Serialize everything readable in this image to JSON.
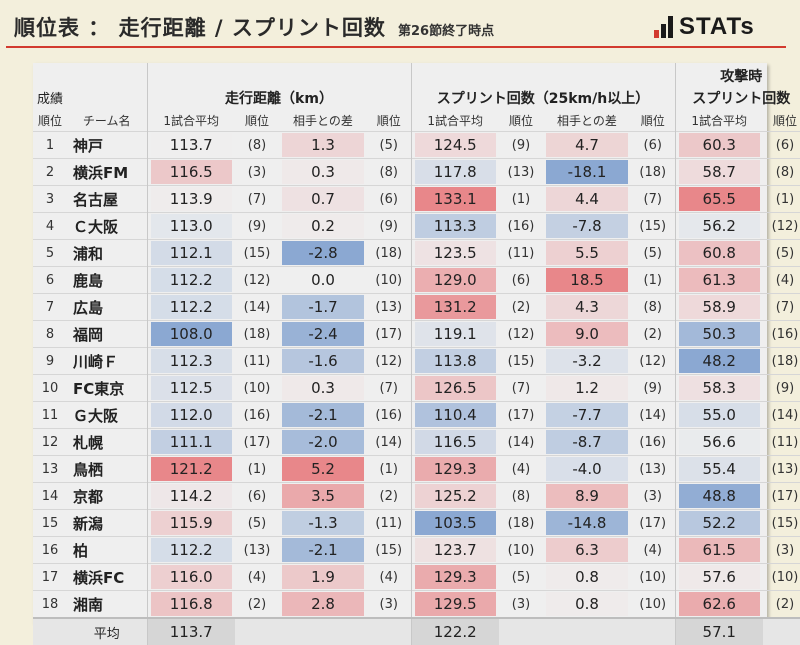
{
  "header": {
    "title": "順位表 ： 走行距離 / スプリント回数",
    "subtitle": "第26節終了時点",
    "logo_text": "STATs",
    "rule_color": "#d23a2f"
  },
  "table": {
    "corner_line1": "成績",
    "corner_rank": "順位",
    "corner_team": "チーム名",
    "group_distance": "走行距離（km）",
    "group_sprint": "スプリント回数（25km/h以上）",
    "group_attack_line1": "攻撃時",
    "group_attack_line2": "スプリント回数",
    "sub": {
      "per_game": "1試合平均",
      "rank": "順位",
      "diff": "相手との差"
    },
    "colors": {
      "blue_strong": "#8ba8d2",
      "red_strong": "#e8878a",
      "neutral": "#efefef"
    },
    "rows": [
      {
        "rank": "1",
        "team": "神戸",
        "dist": "113.7",
        "dist_r": "(8)",
        "dist_d": "1.3",
        "dist_dr": "(5)",
        "spr": "124.5",
        "spr_r": "(9)",
        "spr_d": "4.7",
        "spr_dr": "(6)",
        "att": "60.3",
        "att_r": "(6)"
      },
      {
        "rank": "2",
        "team": "横浜FM",
        "dist": "116.5",
        "dist_r": "(3)",
        "dist_d": "0.3",
        "dist_dr": "(8)",
        "spr": "117.8",
        "spr_r": "(13)",
        "spr_d": "-18.1",
        "spr_dr": "(18)",
        "att": "58.7",
        "att_r": "(8)"
      },
      {
        "rank": "3",
        "team": "名古屋",
        "dist": "113.9",
        "dist_r": "(7)",
        "dist_d": "0.7",
        "dist_dr": "(6)",
        "spr": "133.1",
        "spr_r": "(1)",
        "spr_d": "4.4",
        "spr_dr": "(7)",
        "att": "65.5",
        "att_r": "(1)"
      },
      {
        "rank": "4",
        "team": "Ｃ大阪",
        "dist": "113.0",
        "dist_r": "(9)",
        "dist_d": "0.2",
        "dist_dr": "(9)",
        "spr": "113.3",
        "spr_r": "(16)",
        "spr_d": "-7.8",
        "spr_dr": "(15)",
        "att": "56.2",
        "att_r": "(12)"
      },
      {
        "rank": "5",
        "team": "浦和",
        "dist": "112.1",
        "dist_r": "(15)",
        "dist_d": "-2.8",
        "dist_dr": "(18)",
        "spr": "123.5",
        "spr_r": "(11)",
        "spr_d": "5.5",
        "spr_dr": "(5)",
        "att": "60.8",
        "att_r": "(5)"
      },
      {
        "rank": "6",
        "team": "鹿島",
        "dist": "112.2",
        "dist_r": "(12)",
        "dist_d": "0.0",
        "dist_dr": "(10)",
        "spr": "129.0",
        "spr_r": "(6)",
        "spr_d": "18.5",
        "spr_dr": "(1)",
        "att": "61.3",
        "att_r": "(4)"
      },
      {
        "rank": "7",
        "team": "広島",
        "dist": "112.2",
        "dist_r": "(14)",
        "dist_d": "-1.7",
        "dist_dr": "(13)",
        "spr": "131.2",
        "spr_r": "(2)",
        "spr_d": "4.3",
        "spr_dr": "(8)",
        "att": "58.9",
        "att_r": "(7)"
      },
      {
        "rank": "8",
        "team": "福岡",
        "dist": "108.0",
        "dist_r": "(18)",
        "dist_d": "-2.4",
        "dist_dr": "(17)",
        "spr": "119.1",
        "spr_r": "(12)",
        "spr_d": "9.0",
        "spr_dr": "(2)",
        "att": "50.3",
        "att_r": "(16)"
      },
      {
        "rank": "9",
        "team": "川崎Ｆ",
        "dist": "112.3",
        "dist_r": "(11)",
        "dist_d": "-1.6",
        "dist_dr": "(12)",
        "spr": "113.8",
        "spr_r": "(15)",
        "spr_d": "-3.2",
        "spr_dr": "(12)",
        "att": "48.2",
        "att_r": "(18)"
      },
      {
        "rank": "10",
        "team": "FC東京",
        "dist": "112.5",
        "dist_r": "(10)",
        "dist_d": "0.3",
        "dist_dr": "(7)",
        "spr": "126.5",
        "spr_r": "(7)",
        "spr_d": "1.2",
        "spr_dr": "(9)",
        "att": "58.3",
        "att_r": "(9)"
      },
      {
        "rank": "11",
        "team": "Ｇ大阪",
        "dist": "112.0",
        "dist_r": "(16)",
        "dist_d": "-2.1",
        "dist_dr": "(16)",
        "spr": "110.4",
        "spr_r": "(17)",
        "spr_d": "-7.7",
        "spr_dr": "(14)",
        "att": "55.0",
        "att_r": "(14)"
      },
      {
        "rank": "12",
        "team": "札幌",
        "dist": "111.1",
        "dist_r": "(17)",
        "dist_d": "-2.0",
        "dist_dr": "(14)",
        "spr": "116.5",
        "spr_r": "(14)",
        "spr_d": "-8.7",
        "spr_dr": "(16)",
        "att": "56.6",
        "att_r": "(11)"
      },
      {
        "rank": "13",
        "team": "鳥栖",
        "dist": "121.2",
        "dist_r": "(1)",
        "dist_d": "5.2",
        "dist_dr": "(1)",
        "spr": "129.3",
        "spr_r": "(4)",
        "spr_d": "-4.0",
        "spr_dr": "(13)",
        "att": "55.4",
        "att_r": "(13)"
      },
      {
        "rank": "14",
        "team": "京都",
        "dist": "114.2",
        "dist_r": "(6)",
        "dist_d": "3.5",
        "dist_dr": "(2)",
        "spr": "125.2",
        "spr_r": "(8)",
        "spr_d": "8.9",
        "spr_dr": "(3)",
        "att": "48.8",
        "att_r": "(17)"
      },
      {
        "rank": "15",
        "team": "新潟",
        "dist": "115.9",
        "dist_r": "(5)",
        "dist_d": "-1.3",
        "dist_dr": "(11)",
        "spr": "103.5",
        "spr_r": "(18)",
        "spr_d": "-14.8",
        "spr_dr": "(17)",
        "att": "52.2",
        "att_r": "(15)"
      },
      {
        "rank": "16",
        "team": "柏",
        "dist": "112.2",
        "dist_r": "(13)",
        "dist_d": "-2.1",
        "dist_dr": "(15)",
        "spr": "123.7",
        "spr_r": "(10)",
        "spr_d": "6.3",
        "spr_dr": "(4)",
        "att": "61.5",
        "att_r": "(3)"
      },
      {
        "rank": "17",
        "team": "横浜FC",
        "dist": "116.0",
        "dist_r": "(4)",
        "dist_d": "1.9",
        "dist_dr": "(4)",
        "spr": "129.3",
        "spr_r": "(5)",
        "spr_d": "0.8",
        "spr_dr": "(10)",
        "att": "57.6",
        "att_r": "(10)"
      },
      {
        "rank": "18",
        "team": "湘南",
        "dist": "116.8",
        "dist_r": "(2)",
        "dist_d": "2.8",
        "dist_dr": "(3)",
        "spr": "129.5",
        "spr_r": "(3)",
        "spr_d": "0.8",
        "spr_dr": "(10)",
        "att": "62.6",
        "att_r": "(2)"
      }
    ],
    "footer": {
      "label": "平均",
      "dist_avg": "113.7",
      "spr_avg": "122.2",
      "att_avg": "57.1"
    }
  }
}
